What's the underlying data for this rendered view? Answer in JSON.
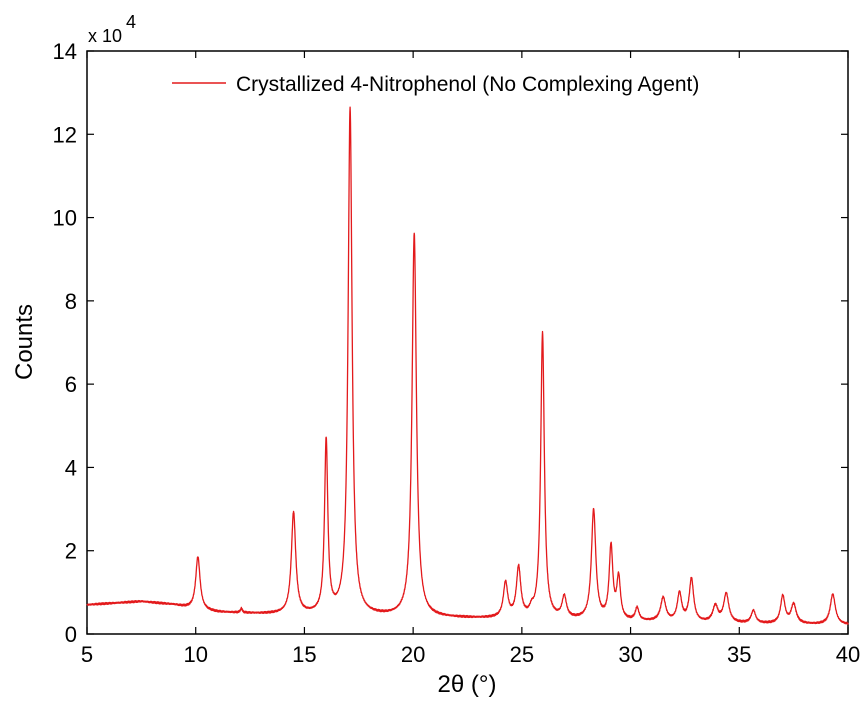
{
  "chart_data": {
    "type": "line",
    "title": "",
    "xlabel": "2θ (°)",
    "ylabel": "Counts",
    "y_multiplier_label": "x 10",
    "y_multiplier_exponent": "4",
    "xlim": [
      5,
      40
    ],
    "ylim": [
      0,
      140000
    ],
    "xticks": [
      5,
      10,
      15,
      20,
      25,
      30,
      35,
      40
    ],
    "yticks": [
      0,
      20000,
      40000,
      60000,
      80000,
      100000,
      120000,
      140000
    ],
    "ytick_labels": [
      "0",
      "2",
      "4",
      "6",
      "8",
      "10",
      "12",
      "14"
    ],
    "xtick_labels": [
      "5",
      "10",
      "15",
      "20",
      "25",
      "30",
      "35",
      "40"
    ],
    "grid": false,
    "legend_position": "top-right",
    "series": [
      {
        "name": "Crystallized 4-Nitrophenol (No Complexing Agent)",
        "color": "#e31a1c",
        "baseline": [
          [
            5,
            7000
          ],
          [
            7.5,
            7800
          ],
          [
            9,
            7000
          ],
          [
            10,
            5800
          ],
          [
            11,
            5200
          ],
          [
            13,
            4800
          ],
          [
            15,
            4600
          ],
          [
            17,
            4400
          ],
          [
            20,
            4000
          ],
          [
            23,
            3700
          ],
          [
            26,
            3500
          ],
          [
            30,
            3000
          ],
          [
            35,
            2500
          ],
          [
            40,
            2200
          ]
        ],
        "peaks": [
          {
            "x": 10.1,
            "y": 18500,
            "w": 0.12
          },
          {
            "x": 12.1,
            "y": 6000,
            "w": 0.05
          },
          {
            "x": 14.5,
            "y": 29000,
            "w": 0.12
          },
          {
            "x": 16.0,
            "y": 46000,
            "w": 0.09
          },
          {
            "x": 17.1,
            "y": 126000,
            "w": 0.11
          },
          {
            "x": 20.05,
            "y": 96000,
            "w": 0.12
          },
          {
            "x": 24.25,
            "y": 12000,
            "w": 0.12
          },
          {
            "x": 24.85,
            "y": 15500,
            "w": 0.12
          },
          {
            "x": 25.45,
            "y": 5000,
            "w": 0.1
          },
          {
            "x": 25.95,
            "y": 72000,
            "w": 0.1
          },
          {
            "x": 26.95,
            "y": 8500,
            "w": 0.12
          },
          {
            "x": 28.3,
            "y": 29500,
            "w": 0.12
          },
          {
            "x": 29.1,
            "y": 20500,
            "w": 0.1
          },
          {
            "x": 29.45,
            "y": 13000,
            "w": 0.1
          },
          {
            "x": 30.3,
            "y": 6000,
            "w": 0.1
          },
          {
            "x": 31.5,
            "y": 8500,
            "w": 0.14
          },
          {
            "x": 32.25,
            "y": 9500,
            "w": 0.12
          },
          {
            "x": 32.8,
            "y": 13000,
            "w": 0.12
          },
          {
            "x": 33.9,
            "y": 6500,
            "w": 0.14
          },
          {
            "x": 34.4,
            "y": 9500,
            "w": 0.14
          },
          {
            "x": 35.65,
            "y": 5500,
            "w": 0.12
          },
          {
            "x": 37.0,
            "y": 9000,
            "w": 0.12
          },
          {
            "x": 37.5,
            "y": 7000,
            "w": 0.14
          },
          {
            "x": 39.3,
            "y": 9500,
            "w": 0.14
          }
        ]
      }
    ]
  }
}
